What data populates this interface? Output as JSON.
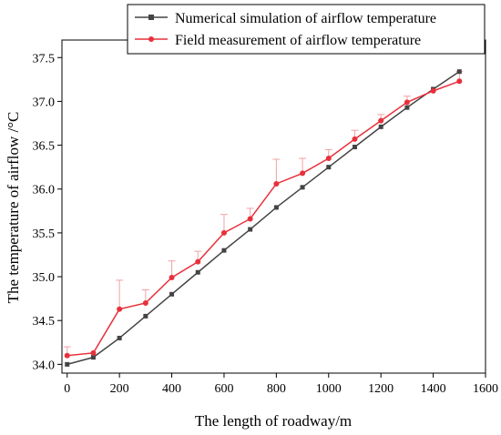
{
  "chart_data": {
    "type": "line",
    "xlabel": "The length of roadway/m",
    "ylabel": "The temperature of airflow /°C",
    "xlim": [
      -20,
      1600
    ],
    "ylim": [
      33.9,
      37.7
    ],
    "x_ticks": [
      "0",
      "200",
      "400",
      "600",
      "800",
      "1000",
      "1200",
      "1400",
      "1600"
    ],
    "y_ticks": [
      "34.0",
      "34.5",
      "35.0",
      "35.5",
      "36.0",
      "36.5",
      "37.0",
      "37.5"
    ],
    "legend_position": "top-right",
    "grid": false,
    "series": [
      {
        "name": "Numerical simulation of airflow temperature",
        "color": "#444444",
        "marker": "square",
        "x": [
          0,
          100,
          200,
          300,
          400,
          500,
          600,
          700,
          800,
          900,
          1000,
          1100,
          1200,
          1300,
          1400,
          1500
        ],
        "y": [
          34.0,
          34.08,
          34.3,
          34.55,
          34.8,
          35.05,
          35.3,
          35.54,
          35.79,
          36.02,
          36.25,
          36.48,
          36.71,
          36.93,
          37.14,
          37.34
        ]
      },
      {
        "name": "Field measurement of airflow temperature",
        "color": "#e8303a",
        "marker": "circle",
        "x": [
          0,
          100,
          200,
          300,
          400,
          500,
          600,
          700,
          800,
          900,
          1000,
          1100,
          1200,
          1300,
          1400,
          1500
        ],
        "y": [
          34.1,
          34.13,
          34.63,
          34.7,
          34.99,
          35.17,
          35.5,
          35.66,
          36.06,
          36.18,
          36.35,
          36.57,
          36.78,
          36.99,
          37.12,
          37.23
        ],
        "error": [
          0.1,
          0.0,
          0.33,
          0.15,
          0.19,
          0.12,
          0.21,
          0.12,
          0.28,
          0.17,
          0.1,
          0.1,
          0.07,
          0.07,
          0.0,
          0.11
        ]
      }
    ]
  }
}
